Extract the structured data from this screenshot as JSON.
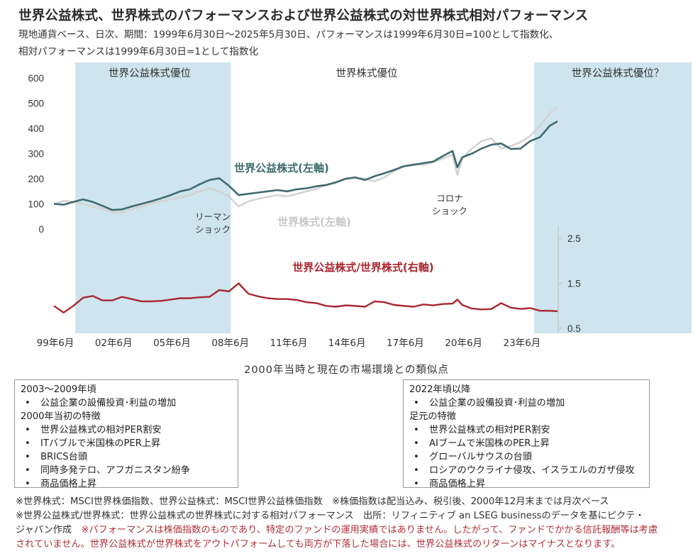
{
  "header": {
    "title": "世界公益株式、世界株式のパフォーマンスおよび世界公益株式の対世界株式相対パフォーマンス",
    "subtitle_line1": "現地通貨ベース、日次、期間：1999年6月30日～2025年5月30日、パフォーマンスは1999年6月30日=100として指数化、",
    "subtitle_line2": "相対パフォーマンスは1999年6月30日=1として指数化"
  },
  "chart_data": {
    "type": "line",
    "period": "1999年6月30日～2025年5月30日",
    "x_tick_labels": [
      "99年6月",
      "02年6月",
      "05年6月",
      "08年6月",
      "11年6月",
      "14年6月",
      "17年6月",
      "20年6月",
      "23年6月"
    ],
    "left_axis": {
      "ticks": [
        0,
        100,
        200,
        300,
        400,
        500,
        600
      ],
      "ylim": [
        0,
        600
      ]
    },
    "right_axis": {
      "ticks": [
        0.5,
        1.5,
        2.5
      ],
      "ylim": [
        0.5,
        2.5
      ]
    },
    "colors": {
      "utilities": "#3e6b6e",
      "world": "#d3d3d3",
      "relative": "#a8262e",
      "shade": "#c9e1ec",
      "regime_label": "#333333"
    },
    "x": [
      1999.5,
      2000.0,
      2000.5,
      2001.0,
      2001.5,
      2002.0,
      2002.5,
      2003.0,
      2003.5,
      2004.0,
      2004.5,
      2005.0,
      2005.5,
      2006.0,
      2006.5,
      2007.0,
      2007.5,
      2008.0,
      2008.5,
      2009.0,
      2009.5,
      2010.0,
      2010.5,
      2011.0,
      2011.5,
      2012.0,
      2012.5,
      2013.0,
      2013.5,
      2014.0,
      2014.5,
      2015.0,
      2015.5,
      2016.0,
      2016.5,
      2017.0,
      2017.5,
      2018.0,
      2018.5,
      2019.0,
      2019.5,
      2020.0,
      2020.25,
      2020.5,
      2021.0,
      2021.5,
      2022.0,
      2022.5,
      2023.0,
      2023.5,
      2024.0,
      2024.5,
      2025.0,
      2025.4
    ],
    "series": [
      {
        "name": "世界公益株式(左軸)",
        "axis": "left",
        "values": [
          100,
          97,
          108,
          118,
          108,
          92,
          76,
          78,
          90,
          100,
          110,
          122,
          135,
          150,
          158,
          178,
          195,
          202,
          172,
          135,
          140,
          145,
          150,
          155,
          150,
          158,
          162,
          170,
          175,
          185,
          200,
          205,
          195,
          210,
          222,
          235,
          250,
          255,
          262,
          268,
          290,
          310,
          245,
          285,
          300,
          320,
          335,
          340,
          318,
          320,
          350,
          365,
          410,
          428
        ]
      },
      {
        "name": "世界株式(左軸)",
        "axis": "left",
        "values": [
          100,
          112,
          108,
          100,
          88,
          82,
          68,
          65,
          78,
          90,
          100,
          110,
          118,
          128,
          135,
          150,
          162,
          150,
          130,
          90,
          110,
          120,
          128,
          135,
          130,
          140,
          150,
          160,
          175,
          188,
          198,
          205,
          200,
          190,
          205,
          230,
          248,
          260,
          255,
          265,
          280,
          295,
          215,
          280,
          320,
          350,
          360,
          320,
          330,
          345,
          370,
          410,
          460,
          485
        ]
      },
      {
        "name": "世界公益株式/世界株式(右軸)",
        "axis": "right",
        "values": [
          1.0,
          0.85,
          1.0,
          1.18,
          1.22,
          1.12,
          1.12,
          1.2,
          1.15,
          1.1,
          1.1,
          1.11,
          1.14,
          1.17,
          1.17,
          1.19,
          1.2,
          1.35,
          1.32,
          1.5,
          1.27,
          1.21,
          1.17,
          1.15,
          1.15,
          1.13,
          1.08,
          1.06,
          1.0,
          0.98,
          1.01,
          1.0,
          0.98,
          1.1,
          1.08,
          1.02,
          1.0,
          0.98,
          1.03,
          1.01,
          1.04,
          1.05,
          1.14,
          1.02,
          0.94,
          0.92,
          0.93,
          1.06,
          0.96,
          0.93,
          0.95,
          0.89,
          0.89,
          0.88
        ]
      }
    ],
    "shaded_periods": [
      [
        2000.6,
        2008.6
      ],
      [
        2024.2,
        2025.4
      ]
    ],
    "regime_labels": [
      "世界公益株式優位",
      "世界株式優位",
      "世界公益株式優位？"
    ],
    "annotations": [
      "リーマン",
      "ショック",
      "コロナ",
      "ショック"
    ],
    "series_labels": [
      "世界公益株式(左軸)",
      "世界株式(左軸)",
      "世界公益株式/世界株式(右軸)"
    ]
  },
  "comparison": {
    "title": "2000年当時と現在の市場環境との類似点",
    "left_box": {
      "lines": [
        {
          "text": "2003～2009年頃",
          "bullet": false
        },
        {
          "text": "公益企業の設備投資･利益の増加",
          "bullet": true
        },
        {
          "text": "2000年当初の特徴",
          "bullet": false
        },
        {
          "text": "世界公益株式の相対PER割安",
          "bullet": true
        },
        {
          "text": "ITバブルで米国株のPER上昇",
          "bullet": true
        },
        {
          "text": "BRICS台頭",
          "bullet": true
        },
        {
          "text": "同時多発テロ、アフガニスタン紛争",
          "bullet": true
        },
        {
          "text": "商品価格上昇",
          "bullet": true
        }
      ]
    },
    "right_box": {
      "lines": [
        {
          "text": "2022年頃以降",
          "bullet": false
        },
        {
          "text": "公益企業の設備投資･利益の増加",
          "bullet": true
        },
        {
          "text": "足元の特徴",
          "bullet": false
        },
        {
          "text": "世界公益株式の相対PER割安",
          "bullet": true
        },
        {
          "text": "AIブームで米国株のPER上昇",
          "bullet": true
        },
        {
          "text": "グローバルサウスの台頭",
          "bullet": true
        },
        {
          "text": "ロシアのウクライナ侵攻、イスラエルのガザ侵攻",
          "bullet": true
        },
        {
          "text": "商品価格上昇",
          "bullet": true
        }
      ]
    }
  },
  "footnotes": {
    "line1": "※世界株式：MSCI世界株価指数、世界公益株式：MSCI世界公益株価指数　※株価指数は配当込み、税引後、2000年12月末までは月次ベース",
    "line2": "※世界公益株式/世界株式：世界公益株式の世界株式に対する相対パフォーマンス　出所：リフィニティブ an LSEG businessのデータを基にピクテ・",
    "line3_plain": "ジャパン作成　",
    "line3_warn": "※パフォーマンスは株価指数のものであり、特定のファンドの運用実績ではありません。したがって、ファンドでかかる信託報酬等は考慮",
    "line4_warn": "されていません。世界公益株式が世界株式をアウトパフォームしても両方が下落した場合には、世界公益株式のリターンはマイナスとなります。"
  }
}
